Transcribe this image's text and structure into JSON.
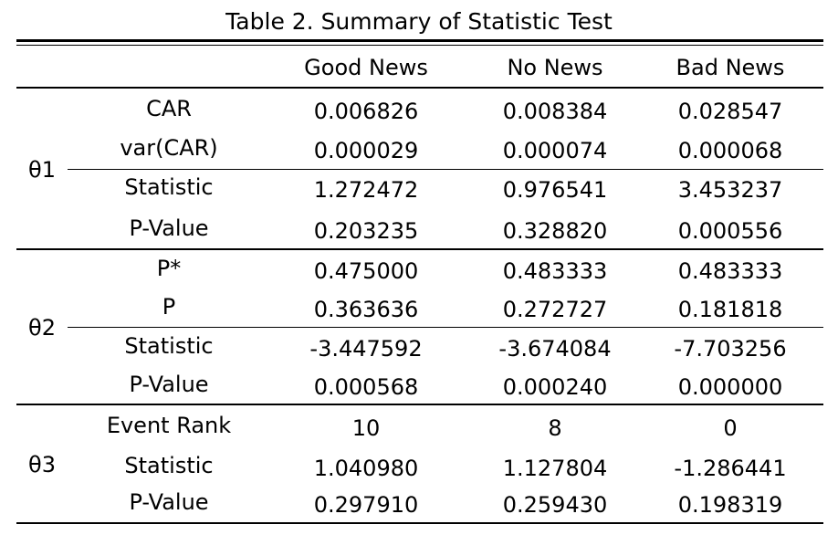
{
  "title": "Table 2. Summary of Statistic Test",
  "columns": [
    "Good News",
    "No News",
    "Bad News"
  ],
  "groups": [
    {
      "label": "θ1",
      "rows": [
        {
          "label": "CAR",
          "values": [
            "0.006826",
            "0.008384",
            "0.028547"
          ]
        },
        {
          "label": "var(CAR)",
          "values": [
            "0.000029",
            "0.000074",
            "0.000068"
          ]
        },
        {
          "label": "Statistic",
          "values": [
            "1.272472",
            "0.976541",
            "3.453237"
          ]
        },
        {
          "label": "P-Value",
          "values": [
            "0.203235",
            "0.328820",
            "0.000556"
          ]
        }
      ]
    },
    {
      "label": "θ2",
      "rows": [
        {
          "label": "P*",
          "values": [
            "0.475000",
            "0.483333",
            "0.483333"
          ]
        },
        {
          "label": "P",
          "values": [
            "0.363636",
            "0.272727",
            "0.181818"
          ]
        },
        {
          "label": "Statistic",
          "values": [
            "-3.447592",
            "-3.674084",
            "-7.703256"
          ]
        },
        {
          "label": "P-Value",
          "values": [
            "0.000568",
            "0.000240",
            "0.000000"
          ]
        }
      ]
    },
    {
      "label": "θ3",
      "rows": [
        {
          "label": "Event Rank",
          "values": [
            "10",
            "8",
            "0"
          ]
        },
        {
          "label": "Statistic",
          "values": [
            "1.040980",
            "1.127804",
            "-1.286441"
          ]
        },
        {
          "label": "P-Value",
          "values": [
            "0.297910",
            "0.259430",
            "0.198319"
          ]
        }
      ]
    }
  ]
}
